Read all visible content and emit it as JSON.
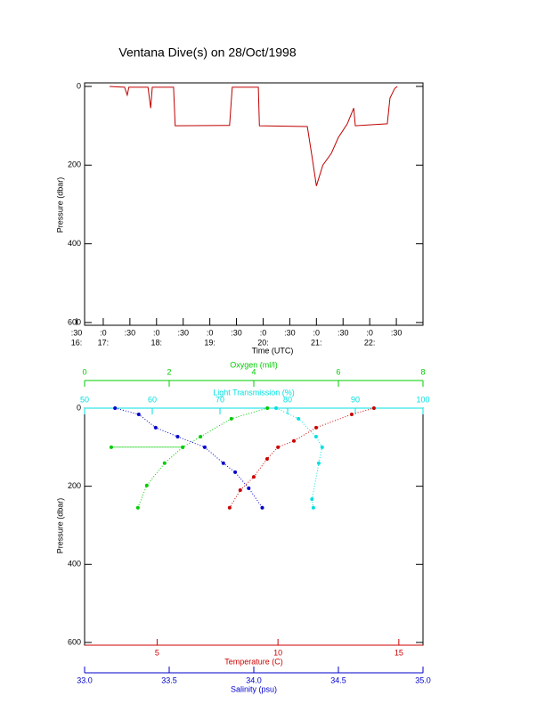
{
  "chart_data": [
    {
      "type": "line",
      "title": "Ventana Dive(s) on 28/Oct/1998",
      "xlabel": "Time (UTC)",
      "ylabel": "Pressure (dbar)",
      "xlim": [
        16.65,
        23.0
      ],
      "ylim": [
        607,
        -9
      ],
      "xticks": [
        {
          "value": 16.5,
          "label": ":30"
        },
        {
          "value": 17,
          "label": ":0"
        },
        {
          "value": 17.5,
          "label": ":30"
        },
        {
          "value": 18,
          "label": ":0"
        },
        {
          "value": 18.5,
          "label": ":30"
        },
        {
          "value": 19,
          "label": ":0"
        },
        {
          "value": 19.5,
          "label": ":30"
        },
        {
          "value": 20,
          "label": ":0"
        },
        {
          "value": 20.5,
          "label": ":30"
        },
        {
          "value": 21,
          "label": ":0"
        },
        {
          "value": 21.5,
          "label": ":30"
        },
        {
          "value": 22,
          "label": ":0"
        },
        {
          "value": 22.5,
          "label": ":30"
        }
      ],
      "xticks_hours": [
        {
          "value": 16.5,
          "label": "16:"
        },
        {
          "value": 17,
          "label": "17:"
        },
        {
          "value": 18,
          "label": "18:"
        },
        {
          "value": 19,
          "label": "19:"
        },
        {
          "value": 20,
          "label": "20:"
        },
        {
          "value": 21,
          "label": "21:"
        },
        {
          "value": 22,
          "label": "22:"
        }
      ],
      "yticks": [
        0,
        200,
        400,
        600
      ],
      "color": "#c00000",
      "x": [
        17.12,
        17.4,
        17.45,
        17.48,
        17.84,
        17.89,
        17.92,
        18.32,
        18.35,
        19.37,
        19.42,
        19.91,
        19.93,
        20.83,
        20.92,
        21.0,
        21.12,
        21.28,
        21.41,
        21.58,
        21.7,
        21.73,
        22.33,
        22.38,
        22.47,
        22.52
      ],
      "values": [
        0,
        2,
        22,
        2,
        2,
        55,
        2,
        2,
        100,
        99,
        2,
        2,
        100,
        102,
        180,
        253,
        200,
        170,
        130,
        95,
        55,
        100,
        95,
        30,
        5,
        0
      ]
    },
    {
      "type": "scatter",
      "ylabel": "Pressure (dbar)",
      "ylim": [
        607,
        0
      ],
      "yticks": [
        0,
        200,
        400,
        600
      ],
      "xaxes": [
        {
          "label": "Oxygen (ml/l)",
          "color": "#00cc00",
          "position": "top",
          "xlim": [
            0,
            8
          ],
          "xticks": [
            0,
            2,
            4,
            6,
            8
          ]
        },
        {
          "label": "Light Transmission (%)",
          "color": "#00e0e0",
          "position": "top",
          "xlim": [
            50,
            100
          ],
          "xticks": [
            50,
            60,
            70,
            80,
            90,
            100
          ]
        },
        {
          "label": "Temperature (C)",
          "color": "#cc0000",
          "position": "bottom",
          "xlim": [
            2,
            16
          ],
          "xticks": [
            5,
            10,
            15
          ]
        },
        {
          "label": "Salinity (psu)",
          "color": "#0000cc",
          "position": "bottom",
          "xlim": [
            33.0,
            35.0
          ],
          "xticks": [
            {
              "value": 33.0,
              "label": "33.0"
            },
            33.5,
            {
              "value": 34.0,
              "label": "34.0"
            },
            34.5,
            {
              "value": 35.0,
              "label": "35.0"
            }
          ]
        }
      ],
      "series": [
        {
          "xaxis": 3,
          "color": "#0000cc",
          "x": [
            33.18,
            33.32,
            33.42,
            33.55,
            33.71,
            33.82,
            33.89,
            33.97,
            34.05
          ],
          "values": [
            0,
            16,
            50,
            73,
            100,
            141,
            164,
            205,
            255
          ]
        },
        {
          "xaxis": 2,
          "color": "#cc0000",
          "x": [
            13.97,
            13.05,
            11.58,
            10.66,
            10.0,
            9.55,
            9.0,
            8.44,
            8.0
          ],
          "values": [
            0,
            16,
            50,
            84,
            100,
            130,
            176,
            210,
            255
          ]
        },
        {
          "xaxis": 0,
          "color": "#00cc00",
          "x": [
            4.32,
            3.47,
            2.74,
            2.32,
            0.63,
            2.32,
            1.89,
            1.47,
            1.26
          ],
          "values": [
            0,
            27,
            73,
            100,
            100,
            100,
            141,
            198,
            255
          ]
        },
        {
          "xaxis": 1,
          "color": "#00e0e0",
          "x": [
            78.3,
            81.6,
            84.2,
            85.1,
            84.6,
            83.6,
            83.8
          ],
          "values": [
            0,
            27,
            73,
            100,
            141,
            233,
            255
          ]
        }
      ]
    }
  ]
}
